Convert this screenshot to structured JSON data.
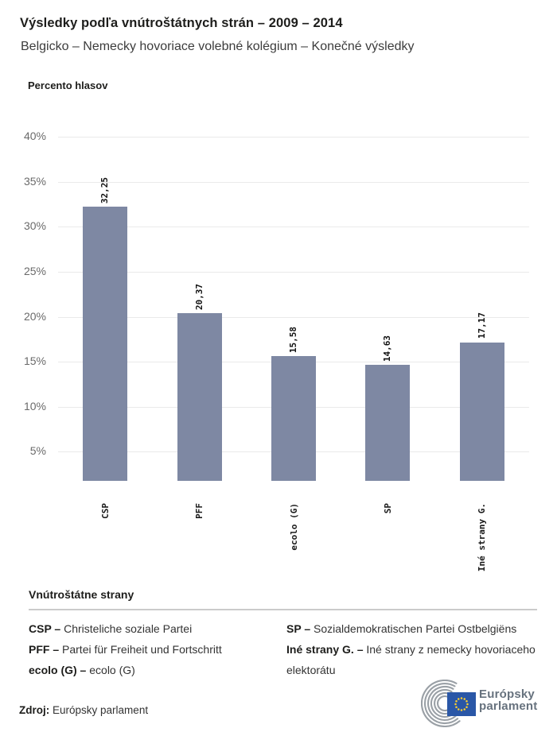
{
  "header": {
    "title": "Výsledky podľa vnútroštátnych strán – 2009 – 2014",
    "subtitle": "Belgicko – Nemecky hovoriace volebné kolégium – Konečné výsledky"
  },
  "chart_data": {
    "type": "bar",
    "title": "Výsledky podľa vnútroštátnych strán – 2009 – 2014",
    "axis_label": "Percento hlasov",
    "categories": [
      "CSP",
      "PFF",
      "ecolo (G)",
      "SP",
      "Iné strany G."
    ],
    "values": [
      32.25,
      20.37,
      15.58,
      14.63,
      17.17
    ],
    "value_labels": [
      "32,25",
      "20,37",
      "15,58",
      "14,63",
      "17,17"
    ],
    "yticks": [
      5,
      10,
      15,
      20,
      25,
      30,
      35,
      40
    ],
    "ytick_labels": [
      "5%",
      "10%",
      "15%",
      "20%",
      "25%",
      "30%",
      "35%",
      "40%"
    ],
    "ylim": [
      0,
      40
    ],
    "grid": true,
    "legend_position": "bottom",
    "bar_color": "#7e88a3"
  },
  "legend": {
    "heading": "Vnútroštátne strany",
    "columns": [
      [
        {
          "label": "CSP –",
          "desc": "Christeliche soziale Partei"
        },
        {
          "label": "PFF –",
          "desc": "Partei für Freiheit und Fortschritt"
        },
        {
          "label": "ecolo (G) –",
          "desc": "ecolo (G)"
        }
      ],
      [
        {
          "label": "SP –",
          "desc": "Sozialdemokratischen Partei Ostbelgiëns"
        },
        {
          "label": "Iné strany G. –",
          "desc": "Iné strany z nemecky hovoriaceho elektorátu"
        }
      ]
    ]
  },
  "footer": {
    "source_label": "Zdroj:",
    "source_value": "Európsky parlament",
    "logo_line1": "Európsky",
    "logo_line2": "parlament"
  },
  "colors": {
    "bar": "#7e88a3",
    "gridline": "#eaeaea",
    "tick_text": "#6a6a6a",
    "flag_blue": "#2a57a7",
    "star_yellow": "#ffd02e",
    "hemicycle_gray": "#9aa0a6",
    "logo_text": "#67727e"
  }
}
